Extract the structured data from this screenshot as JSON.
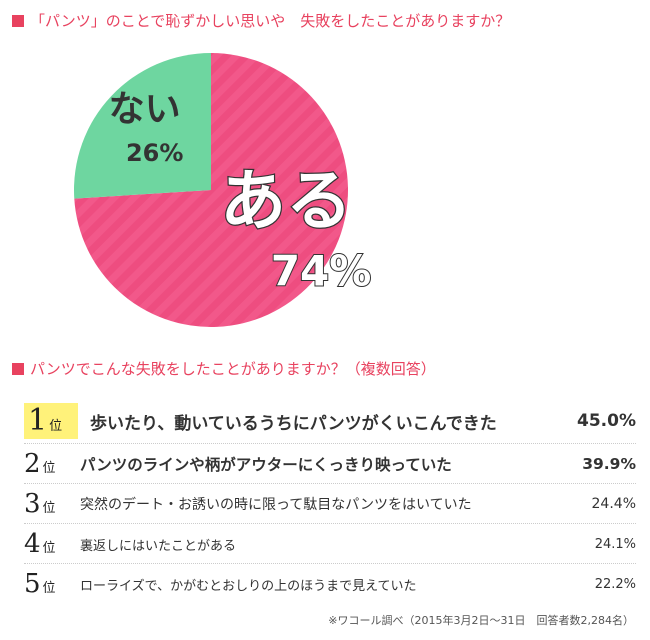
{
  "header": {
    "question1": "「パンツ」のことで恥ずかしい思いや　失敗をしたことがありますか？",
    "question2": "パンツでこんな失敗をしたことがありますか？（複数回答）"
  },
  "colors": {
    "accent": "#e8425f",
    "yes_slice": "#f2588a",
    "no_slice": "#6ed6a0",
    "rank1_highlight": "#fff27a"
  },
  "chart_data": {
    "type": "pie",
    "title": "「パンツ」のことで恥ずかしい思いや　失敗をしたことがありますか？",
    "slices": [
      {
        "label": "ある",
        "value": 74,
        "value_label": "74%",
        "color": "#f2588a"
      },
      {
        "label": "ない",
        "value": 26,
        "value_label": "26%",
        "color": "#6ed6a0"
      }
    ]
  },
  "ranking": {
    "title": "パンツでこんな失敗をしたことがありますか？（複数回答）",
    "rank_suffix": "位",
    "items": [
      {
        "rank": "1",
        "text": "歩いたり、動いているうちにパンツがくいこんできた",
        "percent": "45.0%"
      },
      {
        "rank": "2",
        "text": "パンツのラインや柄がアウターにくっきり映っていた",
        "percent": "39.9%"
      },
      {
        "rank": "3",
        "text": "突然のデート・お誘いの時に限って駄目なパンツをはいていた",
        "percent": "24.4%"
      },
      {
        "rank": "4",
        "text": "裏返しにはいたことがある",
        "percent": "24.1%"
      },
      {
        "rank": "5",
        "text": "ローライズで、かがむとおしりの上のほうまで見えていた",
        "percent": "22.2%"
      }
    ]
  },
  "footnote": "※ワコール調べ（2015年3月2日〜31日　回答者数2,284名）"
}
